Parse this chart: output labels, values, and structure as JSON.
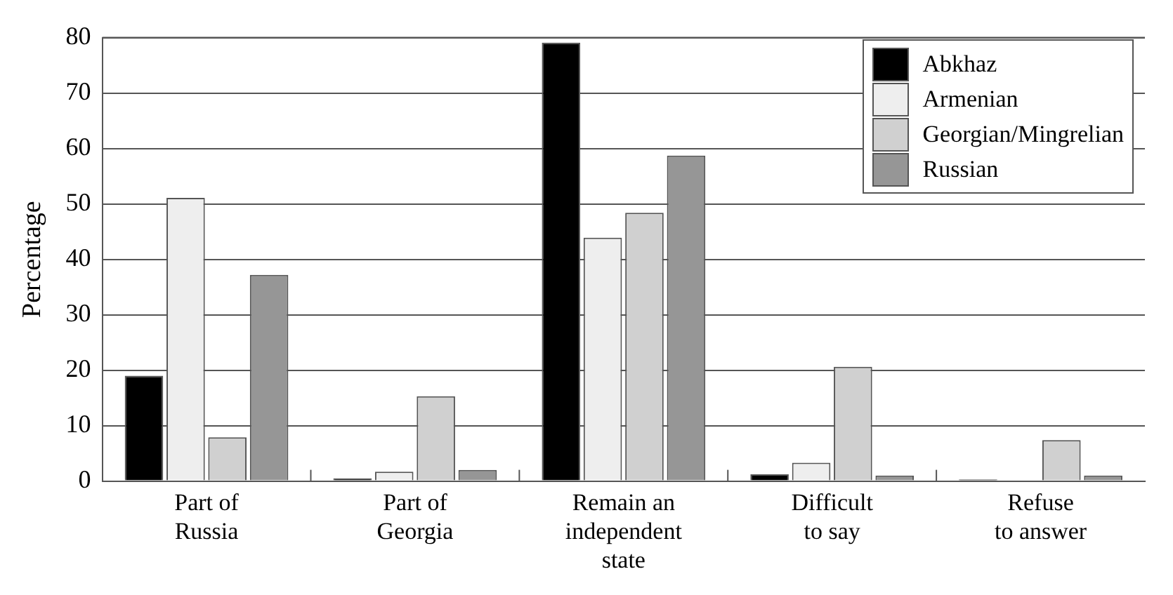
{
  "chart_data": {
    "type": "bar",
    "ylabel": "Percentage",
    "categories": [
      "Part of\nRussia",
      "Part of\nGeorgia",
      "Remain an\nindependent\nstate",
      "Difficult\nto say",
      "Refuse\nto answer"
    ],
    "series": [
      {
        "name": "Abkhaz",
        "color": "#000000",
        "values": [
          19,
          0.5,
          79.1,
          1.2,
          0.3
        ]
      },
      {
        "name": "Armenian",
        "color": "#eeeeee",
        "values": [
          51.1,
          1.7,
          43.9,
          3.3,
          0
        ]
      },
      {
        "name": "Georgian/Mingrelian",
        "color": "#d0d0d0",
        "values": [
          7.9,
          15.3,
          48.4,
          20.6,
          7.4
        ]
      },
      {
        "name": "Russian",
        "color": "#969696",
        "values": [
          37.2,
          2,
          58.7,
          1,
          1
        ]
      }
    ],
    "ylim": [
      0,
      80
    ],
    "yticks": [
      0,
      10,
      20,
      30,
      40,
      50,
      60,
      70,
      80
    ],
    "grid": "y",
    "legend": "top right"
  }
}
